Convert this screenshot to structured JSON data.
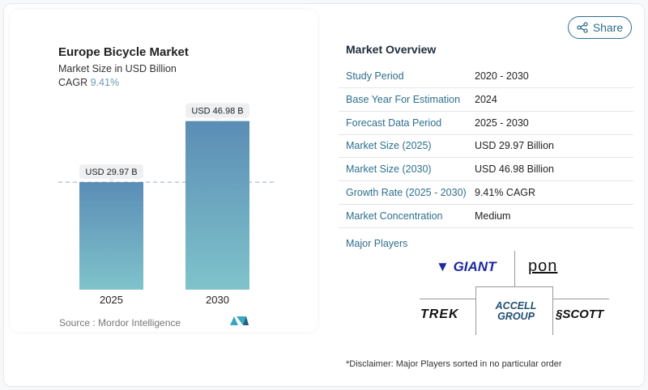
{
  "header": {
    "share_label": "Share",
    "share_icon": "share-icon"
  },
  "chart_data": {
    "type": "bar",
    "title": "Europe Bicycle Market",
    "subtitle": "Market Size in USD Billion",
    "cagr_label": "CAGR",
    "cagr_value": "9.41%",
    "categories": [
      "2025",
      "2030"
    ],
    "values": [
      29.97,
      46.98
    ],
    "data_labels": [
      "USD 29.97 B",
      "USD 46.98 B"
    ],
    "ylim": [
      0,
      50
    ],
    "grid": false,
    "bar_colors": [
      "#5b8db5",
      "#7fc3cb"
    ],
    "source": "Source :  Mordor Intelligence"
  },
  "overview": {
    "title": "Market Overview",
    "rows": [
      {
        "key": "Study Period",
        "value": "2020 - 2030"
      },
      {
        "key": "Base Year For Estimation",
        "value": "2024"
      },
      {
        "key": "Forecast Data Period",
        "value": "2025 - 2030"
      },
      {
        "key": "Market Size (2025)",
        "value": "USD 29.97 Billion"
      },
      {
        "key": "Market Size (2030)",
        "value": "USD 46.98 Billion"
      },
      {
        "key": "Growth Rate (2025 - 2030)",
        "value": "9.41% CAGR"
      },
      {
        "key": "Market Concentration",
        "value": "Medium"
      }
    ],
    "players_title": "Major Players",
    "players": [
      "GIANT",
      "PON",
      "TREK",
      "ACCELL GROUP",
      "SCOTT"
    ],
    "disclaimer": "*Disclaimer: Major Players sorted in no particular order"
  }
}
